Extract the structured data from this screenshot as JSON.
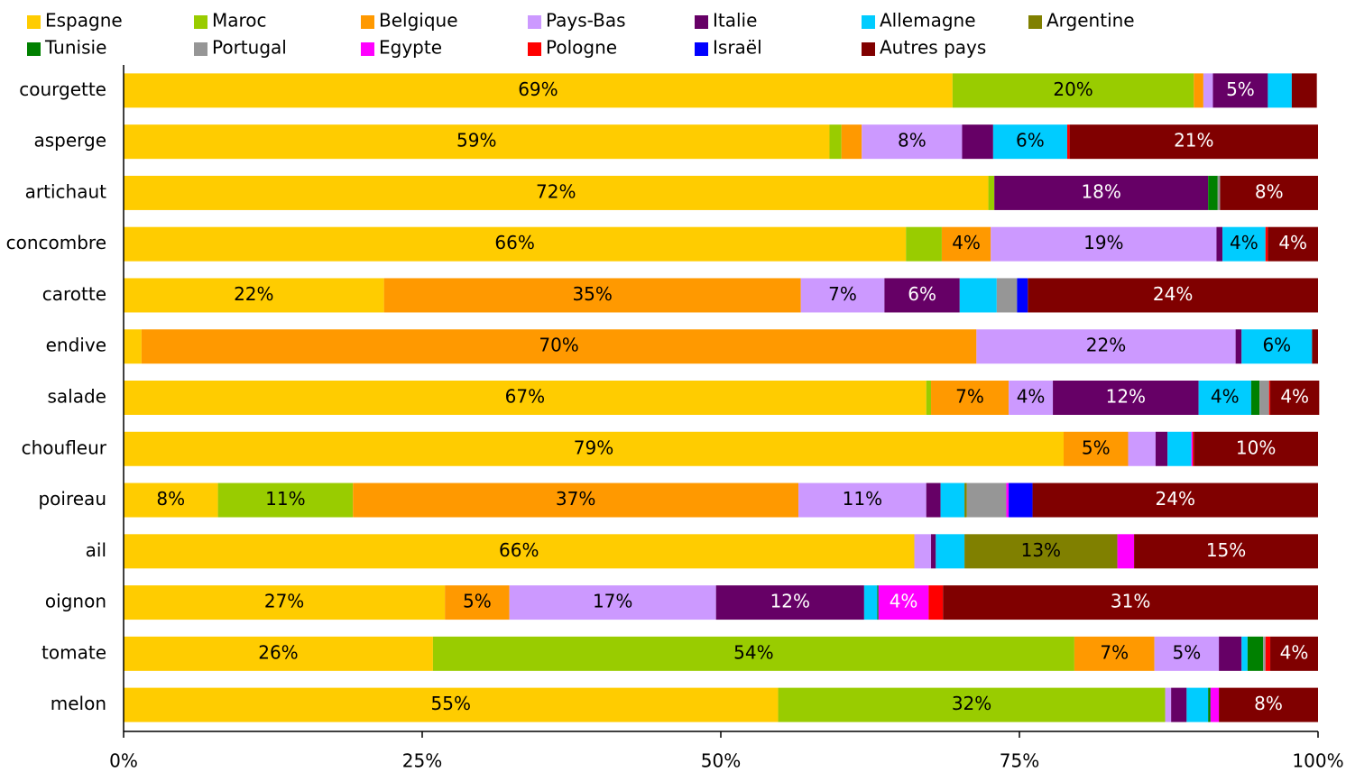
{
  "chart_data": {
    "type": "stacked_bar_horizontal",
    "categories": [
      "courgette",
      "asperge",
      "artichaut",
      "concombre",
      "carotte",
      "endive",
      "salade",
      "choufleur",
      "poireau",
      "ail",
      "oignon",
      "tomate",
      "melon"
    ],
    "xlim": [
      0,
      100
    ],
    "xticks": [
      {
        "value": 0,
        "label": "0%"
      },
      {
        "value": 25,
        "label": "25%"
      },
      {
        "value": 50,
        "label": "50%"
      },
      {
        "value": 75,
        "label": "75%"
      },
      {
        "value": 100,
        "label": "100%"
      }
    ],
    "legend": "top",
    "series": [
      {
        "name": "Espagne",
        "color": "#FFCC00",
        "values": [
          69.4,
          59.1,
          72.4,
          65.5,
          21.8,
          1.5,
          67.2,
          78.7,
          7.9,
          66.2,
          26.9,
          25.9,
          54.8
        ],
        "value_labels": [
          "69%",
          "59%",
          "72%",
          "66%",
          "22%",
          null,
          "67%",
          "79%",
          "8%",
          "66%",
          "27%",
          "26%",
          "55%"
        ]
      },
      {
        "name": "Maroc",
        "color": "#99CC00",
        "values": [
          20.2,
          1.0,
          0.5,
          3.0,
          0,
          0,
          0.4,
          0,
          11.3,
          0,
          0,
          53.7,
          32.4
        ],
        "value_labels": [
          "20%",
          null,
          null,
          null,
          null,
          null,
          null,
          null,
          "11%",
          null,
          null,
          "54%",
          "32%"
        ]
      },
      {
        "name": "Belgique",
        "color": "#FF9900",
        "values": [
          0.8,
          1.7,
          0,
          4.1,
          34.9,
          69.9,
          6.5,
          5.4,
          37.3,
          0,
          5.4,
          6.7,
          0
        ],
        "value_labels": [
          null,
          null,
          null,
          "4%",
          "35%",
          "70%",
          "7%",
          "5%",
          "37%",
          null,
          "5%",
          "7%",
          null
        ]
      },
      {
        "name": "Pays-Bas",
        "color": "#CC99FF",
        "values": [
          0.8,
          8.4,
          0,
          18.9,
          7.0,
          21.7,
          3.7,
          2.3,
          10.7,
          1.4,
          17.3,
          5.4,
          0.5
        ],
        "value_labels": [
          null,
          "8%",
          null,
          "19%",
          "7%",
          "22%",
          "4%",
          null,
          "11%",
          null,
          "17%",
          "5%",
          null
        ]
      },
      {
        "name": "Italie",
        "color": "#660066",
        "values": [
          4.6,
          2.6,
          17.9,
          0.5,
          6.3,
          0.5,
          12.2,
          1.0,
          1.2,
          0.4,
          12.4,
          1.9,
          1.3
        ],
        "value_labels": [
          "5%",
          null,
          "18%",
          null,
          "6%",
          null,
          "12%",
          null,
          null,
          null,
          "12%",
          null,
          null
        ]
      },
      {
        "name": "Allemagne",
        "color": "#00CCFF",
        "values": [
          2.0,
          6.2,
          0,
          3.6,
          3.1,
          5.9,
          4.4,
          2.0,
          2.0,
          2.4,
          1.1,
          0.5,
          1.8
        ],
        "value_labels": [
          null,
          "6%",
          null,
          "4%",
          null,
          "6%",
          "4%",
          null,
          null,
          null,
          null,
          null,
          null
        ]
      },
      {
        "name": "Argentine",
        "color": "#808000",
        "values": [
          0,
          0,
          0,
          0,
          0,
          0,
          0,
          0,
          0.2,
          12.8,
          0,
          0,
          0
        ],
        "value_labels": [
          null,
          null,
          null,
          null,
          null,
          null,
          null,
          null,
          null,
          "13%",
          null,
          null,
          null
        ]
      },
      {
        "name": "Tunisie",
        "color": "#008000",
        "values": [
          0,
          0,
          0.8,
          0,
          0,
          0,
          0.7,
          0,
          0,
          0,
          0.1,
          1.3,
          0.2
        ]
      },
      {
        "name": "Portugal",
        "color": "#969696",
        "values": [
          0,
          0,
          0.2,
          0,
          1.7,
          0,
          0.8,
          0,
          3.3,
          0,
          0,
          0.2,
          0
        ]
      },
      {
        "name": "Egypte",
        "color": "#FF00FF",
        "values": [
          0,
          0,
          0,
          0,
          0,
          0,
          0,
          0.1,
          0.2,
          1.4,
          4.2,
          0,
          0.7
        ],
        "value_labels": [
          null,
          null,
          null,
          null,
          null,
          null,
          null,
          null,
          null,
          null,
          "4%",
          null,
          null
        ]
      },
      {
        "name": "Pologne",
        "color": "#FF0000",
        "values": [
          0,
          0.2,
          0,
          0.2,
          0,
          0,
          0.1,
          0.1,
          0,
          0,
          1.2,
          0.4,
          0
        ]
      },
      {
        "name": "Israël",
        "color": "#0000FF",
        "values": [
          0,
          0,
          0,
          0,
          0.9,
          0,
          0,
          0,
          2.0,
          0,
          0,
          0,
          0
        ]
      },
      {
        "name": "Autres pays",
        "color": "#800000",
        "values": [
          2.1,
          20.8,
          8.2,
          4.2,
          24.3,
          0.5,
          4.1,
          10.4,
          23.9,
          15.4,
          31.4,
          4.0,
          8.3
        ],
        "value_labels": [
          null,
          "21%",
          "8%",
          "4%",
          "24%",
          null,
          "4%",
          "10%",
          "24%",
          "15%",
          "31%",
          "4%",
          "8%"
        ]
      }
    ]
  }
}
